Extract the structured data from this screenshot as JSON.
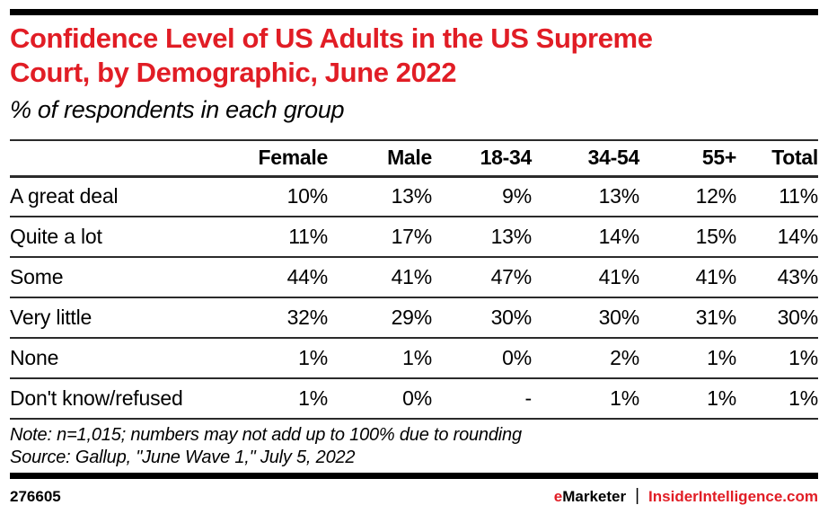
{
  "colors": {
    "accent_red": "#e11d25",
    "text_black": "#000000",
    "rule_dark": "#2b2b2b"
  },
  "header": {
    "title_lines": [
      "Confidence Level of US Adults in the US Supreme",
      "Court, by Demographic, June 2022"
    ]
  },
  "chart_data": {
    "type": "table",
    "title": "Confidence Level of US Adults in the US Supreme Court, by Demographic, June 2022",
    "subtitle": "% of respondents in each group",
    "columns": [
      "Female",
      "Male",
      "18-34",
      "34-54",
      "55+",
      "Total"
    ],
    "rows": [
      {
        "label": "A great deal",
        "values": [
          "10%",
          "13%",
          "9%",
          "13%",
          "12%",
          "11%"
        ]
      },
      {
        "label": "Quite a lot",
        "values": [
          "11%",
          "17%",
          "13%",
          "14%",
          "15%",
          "14%"
        ]
      },
      {
        "label": "Some",
        "values": [
          "44%",
          "41%",
          "47%",
          "41%",
          "41%",
          "43%"
        ]
      },
      {
        "label": "Very little",
        "values": [
          "32%",
          "29%",
          "30%",
          "30%",
          "31%",
          "30%"
        ]
      },
      {
        "label": "None",
        "values": [
          "1%",
          "1%",
          "0%",
          "2%",
          "1%",
          "1%"
        ]
      },
      {
        "label": "Don't know/refused",
        "values": [
          "1%",
          "0%",
          "-",
          "1%",
          "1%",
          "1%"
        ]
      }
    ],
    "note": "Note: n=1,015; numbers may not add up to 100% due to rounding",
    "source": "Source: Gallup, \"June Wave 1,\" July 5, 2022"
  },
  "footer": {
    "chart_id": "276605",
    "brand_e": "e",
    "brand_marketer": "Marketer",
    "separator": "|",
    "site": "InsiderIntelligence.com"
  }
}
